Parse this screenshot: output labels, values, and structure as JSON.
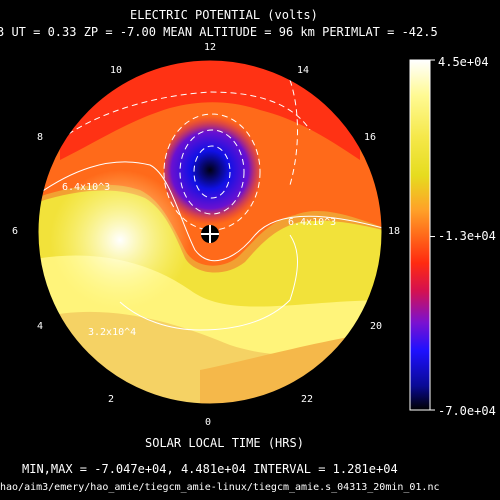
{
  "chart_data": {
    "type": "heatmap",
    "projection": "polar",
    "title": "ELECTRIC POTENTIAL (volts)",
    "subtitle": "3   UT =   0.33   ZP =  -7.00   MEAN ALTITUDE =   96 km   PERIMLAT = -42.5",
    "xlabel": "SOLAR LOCAL TIME (HRS)",
    "hour_labels": [
      "0",
      "2",
      "4",
      "6",
      "8",
      "10",
      "12",
      "14",
      "16",
      "18",
      "20",
      "22"
    ],
    "colorbar": {
      "tick_labels": [
        "4.5e+04",
        "-1.3e+04",
        "-7.0e+04"
      ],
      "ticks": [
        45000,
        -13000,
        -70000
      ],
      "range": [
        -70000,
        45000
      ],
      "colors": [
        "#ffffff",
        "#fffa94",
        "#f5e84a",
        "#e6dc1e",
        "#ffa028",
        "#ff6a1a",
        "#ff2a10",
        "#d41050",
        "#7a10d0",
        "#1e10ff",
        "#0a0a96",
        "#000000"
      ]
    },
    "contour_labels": [
      "6.4x10^3",
      "6.4x10^3",
      "3.2x10^4"
    ],
    "values": {
      "min": -70470,
      "max": 44810,
      "interval": 12810
    },
    "footer_text": "MIN,MAX = -7.047e+04, 4.481e+04 INTERVAL =   1.281e+04",
    "grid": false
  },
  "source_path": "hao/aim3/emery/hao_amie/tiegcm_amie-linux/tiegcm_amie.s_04313_20min_01.nc"
}
